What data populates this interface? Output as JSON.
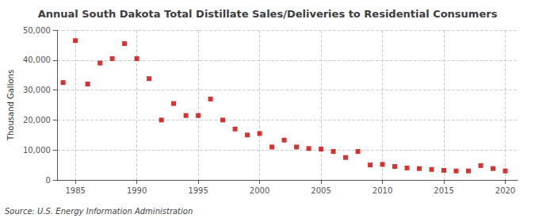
{
  "chart_data": {
    "type": "scatter",
    "title": "Annual South Dakota Total Distillate Sales/Deliveries to Residential Consumers",
    "ylabel": "Thousand Gallons",
    "source": "Source: U.S. Energy Information Administration",
    "color": "#cc0000",
    "marker": "square",
    "x": [
      1984,
      1985,
      1986,
      1987,
      1988,
      1989,
      1990,
      1991,
      1992,
      1993,
      1994,
      1995,
      1996,
      1997,
      1998,
      1999,
      2000,
      2001,
      2002,
      2003,
      2004,
      2005,
      2006,
      2007,
      2008,
      2009,
      2010,
      2011,
      2012,
      2013,
      2014,
      2015,
      2016,
      2017,
      2018,
      2019,
      2020
    ],
    "values": [
      32500,
      46500,
      32000,
      39000,
      40500,
      45500,
      40500,
      33800,
      20000,
      25500,
      21500,
      21500,
      27000,
      20000,
      17000,
      15000,
      15500,
      11000,
      13300,
      11000,
      10500,
      10300,
      9500,
      7500,
      9500,
      5000,
      5200,
      4500,
      4000,
      3800,
      3500,
      3200,
      3000,
      3000,
      4800,
      3800,
      3000
    ],
    "xlim": [
      1983.5,
      2021
    ],
    "xticks": [
      1985,
      1990,
      1995,
      2000,
      2005,
      2010,
      2015,
      2020
    ],
    "ylim": [
      0,
      50000
    ],
    "yticks": [
      0,
      {
        "value": 10000,
        "label": "10,000"
      },
      {
        "value": 20000,
        "label": "20,000"
      },
      {
        "value": 30000,
        "label": "30,000"
      },
      {
        "value": 40000,
        "label": "40,000"
      },
      {
        "value": 50000,
        "label": "50,000"
      }
    ],
    "grid": true
  }
}
